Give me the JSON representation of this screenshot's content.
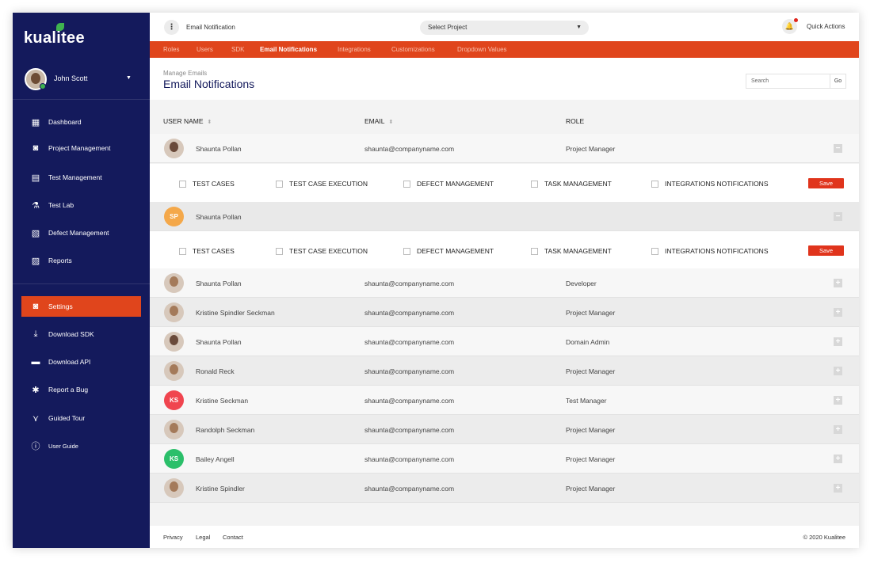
{
  "brand": {
    "logo_text": "kualitee"
  },
  "user": {
    "name": "John Scott"
  },
  "sidebar": {
    "items": [
      {
        "label": "Dashboard",
        "icon": "dashboard-icon",
        "glyph": "▦"
      },
      {
        "label": "Project Management",
        "icon": "project-management-icon",
        "glyph": "◙"
      },
      {
        "label": "Test Management",
        "icon": "test-management-icon",
        "glyph": "▤"
      },
      {
        "label": "Test Lab",
        "icon": "flask-icon",
        "glyph": "⚗"
      },
      {
        "label": "Defect Management",
        "icon": "defect-icon",
        "glyph": "▧"
      },
      {
        "label": "Reports",
        "icon": "reports-icon",
        "glyph": "▨"
      },
      {
        "label": "Settings",
        "icon": "settings-icon",
        "glyph": "◙"
      },
      {
        "label": "Download SDK",
        "icon": "download-sdk-icon",
        "glyph": "⤓"
      },
      {
        "label": "Download API",
        "icon": "download-api-icon",
        "glyph": "▬"
      },
      {
        "label": "Report a Bug",
        "icon": "bug-icon",
        "glyph": "✱"
      },
      {
        "label": "Guided Tour",
        "icon": "tour-icon",
        "glyph": "⋎"
      },
      {
        "label": "User Guide",
        "icon": "info-icon",
        "glyph": "ⓘ"
      }
    ]
  },
  "header": {
    "crumb": "Email Notification",
    "select_project": "Select Project",
    "quick_actions": "Quick Actions"
  },
  "tabs": [
    "Roles",
    "Users",
    "SDK",
    "Email Notifications",
    "Integrations",
    "Customizations",
    "Dropdown Values"
  ],
  "title": {
    "sub": "Manage Emails",
    "main": "Email Notifications"
  },
  "search": {
    "placeholder": "Search",
    "go": "Go"
  },
  "table": {
    "headers": [
      "USER NAME",
      "EMAIL",
      "ROLE"
    ],
    "rows": [
      {
        "name": "Shaunta Pollan",
        "email": "shaunta@companyname.com",
        "role": "Project Manager"
      },
      {
        "name": "Shaunta Pollan",
        "initials": "SP"
      },
      {
        "name": "Shaunta Pollan",
        "email": "shaunta@companyname.com",
        "role": "Developer"
      },
      {
        "name": "Kristine Spindler Seckman",
        "email": "shaunta@companyname.com",
        "role": "Project Manager"
      },
      {
        "name": "Shaunta Pollan",
        "email": "shaunta@companyname.com",
        "role": "Domain Admin"
      },
      {
        "name": "Ronald Reck",
        "email": "shaunta@companyname.com",
        "role": "Project Manager"
      },
      {
        "name": "Kristine  Seckman",
        "initials": "KS",
        "email": "shaunta@companyname.com",
        "role": "Test Manager"
      },
      {
        "name": "Randolph Seckman",
        "email": "shaunta@companyname.com",
        "role": "Project Manager"
      },
      {
        "name": "Bailey Angell",
        "initials": "KS",
        "email": "shaunta@companyname.com",
        "role": "Project Manager"
      },
      {
        "name": "Kristine Spindler",
        "email": "shaunta@companyname.com",
        "role": "Project Manager"
      }
    ],
    "permissions": [
      "TEST CASES",
      "TEST CASE EXECUTION",
      "DEFECT MANAGEMENT",
      "TASK MANAGEMENT",
      "INTEGRATIONS NOTIFICATIONS"
    ],
    "save_label": "Save",
    "collapse_glyph": "−",
    "expand_glyph": "+"
  },
  "footer": {
    "links": [
      "Privacy",
      "Legal",
      "Contact"
    ],
    "copyright": "© 2020 Kualitee"
  },
  "colors": {
    "sidebar": "#141a5c",
    "accent": "#e0451c",
    "green": "#3fb34f"
  }
}
